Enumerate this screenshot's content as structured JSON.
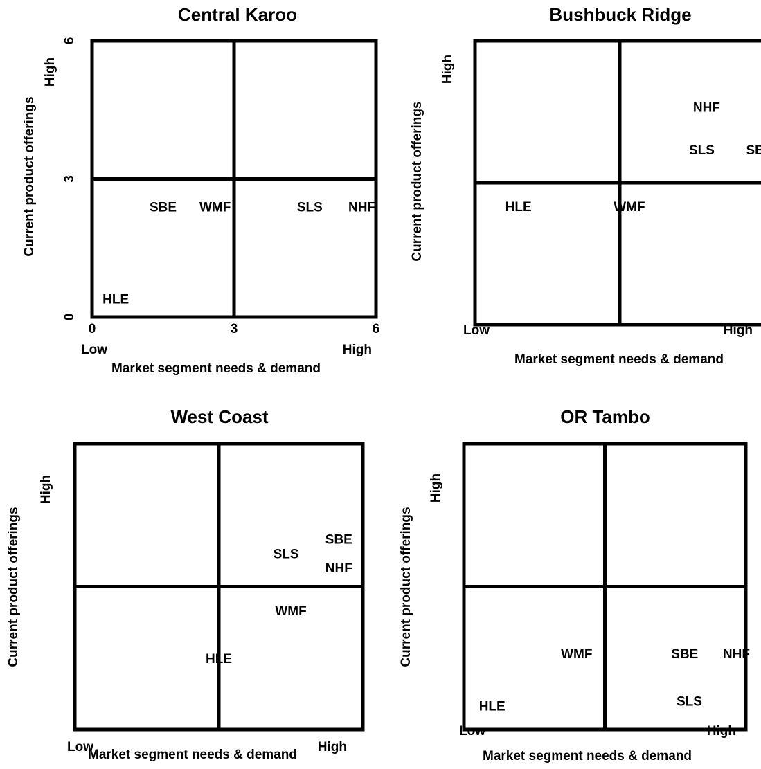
{
  "colors": {
    "SBE": "#1aaa55",
    "WMF": "#ff0000",
    "SLS": "#1874c8",
    "NHF": "#e8761c",
    "HLE": "#6b5b95",
    "frame": "#000000"
  },
  "chart_data": [
    {
      "type": "scatter",
      "title": "Central Karoo",
      "xlabel": "Market segment needs & demand",
      "ylabel": "Current product offerings",
      "x_low": "Low",
      "x_high": "High",
      "y_high": "High",
      "xlim": [
        0,
        6
      ],
      "ylim": [
        0,
        6
      ],
      "xticks": [
        "0",
        "3",
        "6"
      ],
      "yticks": [
        "0",
        "3",
        "6"
      ],
      "points": [
        {
          "label": "SBE",
          "x": 1.5,
          "y": 2.4
        },
        {
          "label": "WMF",
          "x": 2.6,
          "y": 2.4
        },
        {
          "label": "SLS",
          "x": 4.6,
          "y": 2.4
        },
        {
          "label": "NHF",
          "x": 5.7,
          "y": 2.4
        },
        {
          "label": "HLE",
          "x": 0.5,
          "y": 0.4
        }
      ]
    },
    {
      "type": "scatter",
      "title": "Bushbuck Ridge",
      "xlabel": "Market segment needs & demand",
      "ylabel": "Current product offerings",
      "x_low": "Low",
      "x_high": "High",
      "y_high": "High",
      "xlim": [
        0,
        6
      ],
      "ylim": [
        0,
        6
      ],
      "points": [
        {
          "label": "NHF",
          "x": 4.8,
          "y": 4.6
        },
        {
          "label": "SLS",
          "x": 4.7,
          "y": 3.7
        },
        {
          "label": "SBE",
          "x": 5.9,
          "y": 3.7
        },
        {
          "label": "HLE",
          "x": 0.9,
          "y": 2.5
        },
        {
          "label": "WMF",
          "x": 3.2,
          "y": 2.5
        }
      ]
    },
    {
      "type": "scatter",
      "title": "West Coast",
      "xlabel": "Market segment needs & demand",
      "ylabel": "Current product offerings",
      "x_low": "Low",
      "x_high": "High",
      "y_high": "High",
      "xlim": [
        0,
        6
      ],
      "ylim": [
        0,
        6
      ],
      "points": [
        {
          "label": "SBE",
          "x": 5.5,
          "y": 4.0
        },
        {
          "label": "SLS",
          "x": 4.4,
          "y": 3.7
        },
        {
          "label": "NHF",
          "x": 5.5,
          "y": 3.4
        },
        {
          "label": "WMF",
          "x": 4.5,
          "y": 2.5
        },
        {
          "label": "HLE",
          "x": 3.0,
          "y": 1.5
        }
      ]
    },
    {
      "type": "scatter",
      "title": "OR Tambo",
      "xlabel": "Market segment needs & demand",
      "ylabel": "Current product offerings",
      "x_low": "Low",
      "x_high": "High",
      "y_high": "High",
      "xlim": [
        0,
        6
      ],
      "ylim": [
        0,
        6
      ],
      "points": [
        {
          "label": "WMF",
          "x": 2.4,
          "y": 1.6
        },
        {
          "label": "SBE",
          "x": 4.7,
          "y": 1.6
        },
        {
          "label": "NHF",
          "x": 5.8,
          "y": 1.6
        },
        {
          "label": "HLE",
          "x": 0.6,
          "y": 0.5
        },
        {
          "label": "SLS",
          "x": 4.8,
          "y": 0.6
        }
      ]
    }
  ]
}
